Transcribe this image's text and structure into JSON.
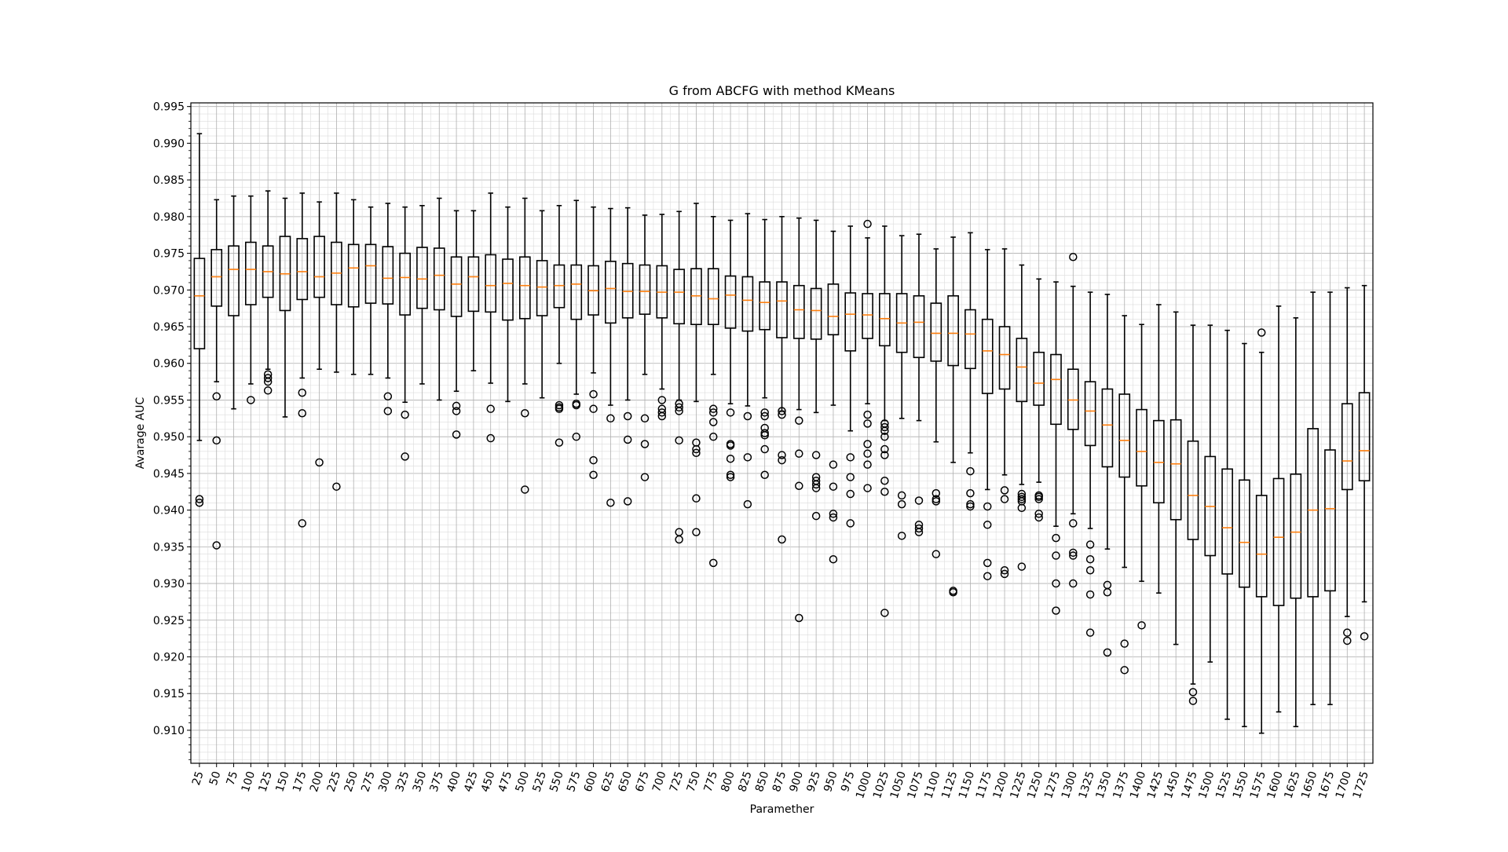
{
  "chart_data": {
    "type": "box",
    "title": "G from ABCFG with method KMeans",
    "xlabel": "Paramether",
    "ylabel": "Avarage AUC",
    "ylim": [
      0.9055,
      0.9955
    ],
    "yticks": [
      0.91,
      0.915,
      0.92,
      0.925,
      0.93,
      0.935,
      0.94,
      0.945,
      0.95,
      0.955,
      0.96,
      0.965,
      0.97,
      0.975,
      0.98,
      0.985,
      0.99,
      0.995
    ],
    "ytick_labels": [
      "0.910",
      "0.915",
      "0.920",
      "0.925",
      "0.930",
      "0.935",
      "0.940",
      "0.945",
      "0.950",
      "0.955",
      "0.960",
      "0.965",
      "0.970",
      "0.975",
      "0.980",
      "0.985",
      "0.990",
      "0.995"
    ],
    "grid": "major and minor",
    "median_color": "#ff7f0e",
    "categories": [
      "25",
      "50",
      "75",
      "100",
      "125",
      "150",
      "175",
      "200",
      "225",
      "250",
      "275",
      "300",
      "325",
      "350",
      "375",
      "400",
      "425",
      "450",
      "475",
      "500",
      "525",
      "550",
      "575",
      "600",
      "625",
      "650",
      "675",
      "700",
      "725",
      "750",
      "775",
      "800",
      "825",
      "850",
      "875",
      "900",
      "925",
      "950",
      "975",
      "1000",
      "1025",
      "1050",
      "1075",
      "1100",
      "1125",
      "1150",
      "1175",
      "1200",
      "1225",
      "1250",
      "1275",
      "1300",
      "1325",
      "1350",
      "1375",
      "1400",
      "1425",
      "1450",
      "1475",
      "1500",
      "1525",
      "1550",
      "1575",
      "1600",
      "1625",
      "1650",
      "1675",
      "1700",
      "1725"
    ],
    "boxes": [
      {
        "low": 0.9495,
        "q1": 0.962,
        "med": 0.9692,
        "q3": 0.9743,
        "high": 0.9913,
        "fliers": [
          0.941,
          0.9415
        ]
      },
      {
        "low": 0.9575,
        "q1": 0.9678,
        "med": 0.9718,
        "q3": 0.9755,
        "high": 0.9823,
        "fliers": [
          0.9555,
          0.9495,
          0.9352
        ]
      },
      {
        "low": 0.9538,
        "q1": 0.9665,
        "med": 0.9728,
        "q3": 0.976,
        "high": 0.9828,
        "fliers": []
      },
      {
        "low": 0.9572,
        "q1": 0.968,
        "med": 0.9728,
        "q3": 0.9765,
        "high": 0.9828,
        "fliers": [
          0.955
        ]
      },
      {
        "low": 0.9592,
        "q1": 0.969,
        "med": 0.9725,
        "q3": 0.976,
        "high": 0.9835,
        "fliers": [
          0.9585,
          0.958,
          0.9575,
          0.9563
        ]
      },
      {
        "low": 0.9527,
        "q1": 0.9672,
        "med": 0.9722,
        "q3": 0.9773,
        "high": 0.9825,
        "fliers": []
      },
      {
        "low": 0.958,
        "q1": 0.9687,
        "med": 0.9725,
        "q3": 0.977,
        "high": 0.9832,
        "fliers": [
          0.956,
          0.9532,
          0.9382
        ]
      },
      {
        "low": 0.9592,
        "q1": 0.969,
        "med": 0.9718,
        "q3": 0.9773,
        "high": 0.982,
        "fliers": [
          0.9465
        ]
      },
      {
        "low": 0.9588,
        "q1": 0.968,
        "med": 0.9723,
        "q3": 0.9765,
        "high": 0.9832,
        "fliers": [
          0.9432
        ]
      },
      {
        "low": 0.9585,
        "q1": 0.9677,
        "med": 0.973,
        "q3": 0.9762,
        "high": 0.9823,
        "fliers": []
      },
      {
        "low": 0.9585,
        "q1": 0.9682,
        "med": 0.9733,
        "q3": 0.9762,
        "high": 0.9813,
        "fliers": []
      },
      {
        "low": 0.958,
        "q1": 0.9681,
        "med": 0.9716,
        "q3": 0.9759,
        "high": 0.9818,
        "fliers": [
          0.9555,
          0.9535
        ]
      },
      {
        "low": 0.9547,
        "q1": 0.9666,
        "med": 0.9717,
        "q3": 0.975,
        "high": 0.9813,
        "fliers": [
          0.953,
          0.9473
        ]
      },
      {
        "low": 0.9572,
        "q1": 0.9675,
        "med": 0.9715,
        "q3": 0.9758,
        "high": 0.9815,
        "fliers": []
      },
      {
        "low": 0.955,
        "q1": 0.9673,
        "med": 0.972,
        "q3": 0.9757,
        "high": 0.9825,
        "fliers": []
      },
      {
        "low": 0.9562,
        "q1": 0.9664,
        "med": 0.9708,
        "q3": 0.9745,
        "high": 0.9808,
        "fliers": [
          0.9542,
          0.9535,
          0.9503
        ]
      },
      {
        "low": 0.959,
        "q1": 0.9671,
        "med": 0.9718,
        "q3": 0.9745,
        "high": 0.9808,
        "fliers": []
      },
      {
        "low": 0.9573,
        "q1": 0.967,
        "med": 0.9706,
        "q3": 0.9748,
        "high": 0.9832,
        "fliers": [
          0.9538,
          0.9498
        ]
      },
      {
        "low": 0.9548,
        "q1": 0.9659,
        "med": 0.9709,
        "q3": 0.9742,
        "high": 0.9813,
        "fliers": []
      },
      {
        "low": 0.9572,
        "q1": 0.9661,
        "med": 0.9706,
        "q3": 0.9745,
        "high": 0.9825,
        "fliers": [
          0.9532,
          0.9428
        ]
      },
      {
        "low": 0.9553,
        "q1": 0.9665,
        "med": 0.9704,
        "q3": 0.974,
        "high": 0.9808,
        "fliers": []
      },
      {
        "low": 0.96,
        "q1": 0.9676,
        "med": 0.9706,
        "q3": 0.9734,
        "high": 0.9815,
        "fliers": [
          0.9543,
          0.954,
          0.9538,
          0.9492
        ]
      },
      {
        "low": 0.9558,
        "q1": 0.966,
        "med": 0.9708,
        "q3": 0.9734,
        "high": 0.9822,
        "fliers": [
          0.9545,
          0.9543,
          0.95
        ]
      },
      {
        "low": 0.9587,
        "q1": 0.9666,
        "med": 0.9699,
        "q3": 0.9733,
        "high": 0.9813,
        "fliers": [
          0.9558,
          0.9538,
          0.9468,
          0.9448
        ]
      },
      {
        "low": 0.9543,
        "q1": 0.9655,
        "med": 0.9702,
        "q3": 0.9739,
        "high": 0.9811,
        "fliers": [
          0.9525,
          0.941
        ]
      },
      {
        "low": 0.955,
        "q1": 0.9662,
        "med": 0.9698,
        "q3": 0.9736,
        "high": 0.9812,
        "fliers": [
          0.9528,
          0.9496,
          0.9412
        ]
      },
      {
        "low": 0.9585,
        "q1": 0.9667,
        "med": 0.9698,
        "q3": 0.9734,
        "high": 0.9802,
        "fliers": [
          0.9525,
          0.949,
          0.9445
        ]
      },
      {
        "low": 0.9565,
        "q1": 0.9662,
        "med": 0.9697,
        "q3": 0.9733,
        "high": 0.9803,
        "fliers": [
          0.955,
          0.9538,
          0.9533,
          0.9528
        ]
      },
      {
        "low": 0.955,
        "q1": 0.9654,
        "med": 0.9697,
        "q3": 0.9728,
        "high": 0.9807,
        "fliers": [
          0.9545,
          0.954,
          0.9535,
          0.9495,
          0.937,
          0.936
        ]
      },
      {
        "low": 0.9548,
        "q1": 0.9653,
        "med": 0.9692,
        "q3": 0.9729,
        "high": 0.9818,
        "fliers": [
          0.9492,
          0.9483,
          0.9478,
          0.9416,
          0.937
        ]
      },
      {
        "low": 0.9585,
        "q1": 0.9653,
        "med": 0.9688,
        "q3": 0.9729,
        "high": 0.98,
        "fliers": [
          0.9538,
          0.9533,
          0.952,
          0.95,
          0.9328
        ]
      },
      {
        "low": 0.9545,
        "q1": 0.9648,
        "med": 0.9693,
        "q3": 0.9719,
        "high": 0.9795,
        "fliers": [
          0.9533,
          0.949,
          0.9488,
          0.947,
          0.9448,
          0.9445
        ]
      },
      {
        "low": 0.9542,
        "q1": 0.9644,
        "med": 0.9686,
        "q3": 0.9718,
        "high": 0.9804,
        "fliers": [
          0.9528,
          0.9472,
          0.9408
        ]
      },
      {
        "low": 0.9553,
        "q1": 0.9646,
        "med": 0.9683,
        "q3": 0.9711,
        "high": 0.9796,
        "fliers": [
          0.9533,
          0.9528,
          0.9512,
          0.9505,
          0.9502,
          0.9483,
          0.9448
        ]
      },
      {
        "low": 0.9535,
        "q1": 0.9635,
        "med": 0.9685,
        "q3": 0.9711,
        "high": 0.98,
        "fliers": [
          0.9535,
          0.953,
          0.9475,
          0.9468,
          0.936
        ]
      },
      {
        "low": 0.9537,
        "q1": 0.9634,
        "med": 0.9673,
        "q3": 0.9706,
        "high": 0.9798,
        "fliers": [
          0.9522,
          0.9477,
          0.9433,
          0.9253
        ]
      },
      {
        "low": 0.9533,
        "q1": 0.9633,
        "med": 0.9672,
        "q3": 0.9702,
        "high": 0.9795,
        "fliers": [
          0.9475,
          0.9445,
          0.944,
          0.9435,
          0.943,
          0.9392
        ]
      },
      {
        "low": 0.9543,
        "q1": 0.9639,
        "med": 0.9664,
        "q3": 0.9708,
        "high": 0.978,
        "fliers": [
          0.9462,
          0.9432,
          0.9395,
          0.939,
          0.9333
        ]
      },
      {
        "low": 0.9508,
        "q1": 0.9617,
        "med": 0.9667,
        "q3": 0.9696,
        "high": 0.9787,
        "fliers": [
          0.9472,
          0.9445,
          0.9422,
          0.9382
        ]
      },
      {
        "low": 0.9545,
        "q1": 0.9634,
        "med": 0.9666,
        "q3": 0.9695,
        "high": 0.9771,
        "fliers": [
          0.979,
          0.953,
          0.9518,
          0.949,
          0.9477,
          0.9462,
          0.943
        ]
      },
      {
        "low": 0.9522,
        "q1": 0.9624,
        "med": 0.9661,
        "q3": 0.9695,
        "high": 0.9787,
        "fliers": [
          0.9518,
          0.9513,
          0.9508,
          0.95,
          0.9483,
          0.9475,
          0.944,
          0.9425,
          0.926
        ]
      },
      {
        "low": 0.9525,
        "q1": 0.9615,
        "med": 0.9655,
        "q3": 0.9695,
        "high": 0.9774,
        "fliers": [
          0.942,
          0.9408,
          0.9365
        ]
      },
      {
        "low": 0.9522,
        "q1": 0.9608,
        "med": 0.9656,
        "q3": 0.9692,
        "high": 0.9776,
        "fliers": [
          0.9413,
          0.938,
          0.9375,
          0.937
        ]
      },
      {
        "low": 0.9493,
        "q1": 0.9603,
        "med": 0.9641,
        "q3": 0.9682,
        "high": 0.9756,
        "fliers": [
          0.9423,
          0.9415,
          0.9412,
          0.934
        ]
      },
      {
        "low": 0.9465,
        "q1": 0.9597,
        "med": 0.9641,
        "q3": 0.9692,
        "high": 0.9772,
        "fliers": [
          0.929,
          0.9288
        ]
      },
      {
        "low": 0.9478,
        "q1": 0.9593,
        "med": 0.964,
        "q3": 0.9673,
        "high": 0.9778,
        "fliers": [
          0.9453,
          0.9423,
          0.9408,
          0.9405
        ]
      },
      {
        "low": 0.9428,
        "q1": 0.9559,
        "med": 0.9617,
        "q3": 0.966,
        "high": 0.9755,
        "fliers": [
          0.9405,
          0.938,
          0.9328,
          0.931
        ]
      },
      {
        "low": 0.9448,
        "q1": 0.9565,
        "med": 0.9612,
        "q3": 0.965,
        "high": 0.9756,
        "fliers": [
          0.9427,
          0.9415,
          0.9318,
          0.9313
        ]
      },
      {
        "low": 0.9435,
        "q1": 0.9548,
        "med": 0.9595,
        "q3": 0.9634,
        "high": 0.9734,
        "fliers": [
          0.9422,
          0.9418,
          0.9415,
          0.9412,
          0.9403,
          0.9323
        ]
      },
      {
        "low": 0.9438,
        "q1": 0.9543,
        "med": 0.9573,
        "q3": 0.9615,
        "high": 0.9715,
        "fliers": [
          0.942,
          0.9418,
          0.9415,
          0.9395,
          0.939
        ]
      },
      {
        "low": 0.9378,
        "q1": 0.9517,
        "med": 0.9578,
        "q3": 0.9612,
        "high": 0.9711,
        "fliers": [
          0.9362,
          0.9338,
          0.93,
          0.9263
        ]
      },
      {
        "low": 0.9395,
        "q1": 0.951,
        "med": 0.955,
        "q3": 0.9592,
        "high": 0.9705,
        "fliers": [
          0.9745,
          0.9382,
          0.9342,
          0.9338,
          0.93
        ]
      },
      {
        "low": 0.9375,
        "q1": 0.9488,
        "med": 0.9535,
        "q3": 0.9575,
        "high": 0.9697,
        "fliers": [
          0.9353,
          0.9333,
          0.9318,
          0.9285,
          0.9233
        ]
      },
      {
        "low": 0.9347,
        "q1": 0.9459,
        "med": 0.9516,
        "q3": 0.9565,
        "high": 0.9694,
        "fliers": [
          0.9298,
          0.9288,
          0.9206
        ]
      },
      {
        "low": 0.9322,
        "q1": 0.9445,
        "med": 0.9495,
        "q3": 0.9558,
        "high": 0.9665,
        "fliers": [
          0.9218,
          0.9182
        ]
      },
      {
        "low": 0.9303,
        "q1": 0.9433,
        "med": 0.948,
        "q3": 0.9537,
        "high": 0.9653,
        "fliers": [
          0.9243
        ]
      },
      {
        "low": 0.9287,
        "q1": 0.941,
        "med": 0.9465,
        "q3": 0.9522,
        "high": 0.968,
        "fliers": []
      },
      {
        "low": 0.9217,
        "q1": 0.9387,
        "med": 0.9463,
        "q3": 0.9523,
        "high": 0.967,
        "fliers": []
      },
      {
        "low": 0.9163,
        "q1": 0.936,
        "med": 0.942,
        "q3": 0.9494,
        "high": 0.9652,
        "fliers": [
          0.9152,
          0.914
        ]
      },
      {
        "low": 0.9193,
        "q1": 0.9338,
        "med": 0.9405,
        "q3": 0.9473,
        "high": 0.9652,
        "fliers": []
      },
      {
        "low": 0.9115,
        "q1": 0.9313,
        "med": 0.9376,
        "q3": 0.9456,
        "high": 0.9645,
        "fliers": []
      },
      {
        "low": 0.9105,
        "q1": 0.9295,
        "med": 0.9356,
        "q3": 0.9441,
        "high": 0.9627,
        "fliers": []
      },
      {
        "low": 0.9096,
        "q1": 0.9282,
        "med": 0.934,
        "q3": 0.942,
        "high": 0.9615,
        "fliers": [
          0.9642
        ]
      },
      {
        "low": 0.9125,
        "q1": 0.927,
        "med": 0.9363,
        "q3": 0.9443,
        "high": 0.9678,
        "fliers": []
      },
      {
        "low": 0.9105,
        "q1": 0.928,
        "med": 0.937,
        "q3": 0.9449,
        "high": 0.9662,
        "fliers": []
      },
      {
        "low": 0.9135,
        "q1": 0.9282,
        "med": 0.94,
        "q3": 0.9511,
        "high": 0.9697,
        "fliers": []
      },
      {
        "low": 0.9135,
        "q1": 0.929,
        "med": 0.9402,
        "q3": 0.9482,
        "high": 0.9697,
        "fliers": []
      },
      {
        "low": 0.9255,
        "q1": 0.9428,
        "med": 0.9467,
        "q3": 0.9545,
        "high": 0.9703,
        "fliers": [
          0.9233,
          0.9222
        ]
      },
      {
        "low": 0.9275,
        "q1": 0.944,
        "med": 0.9481,
        "q3": 0.956,
        "high": 0.9706,
        "fliers": [
          0.9228
        ]
      }
    ]
  }
}
